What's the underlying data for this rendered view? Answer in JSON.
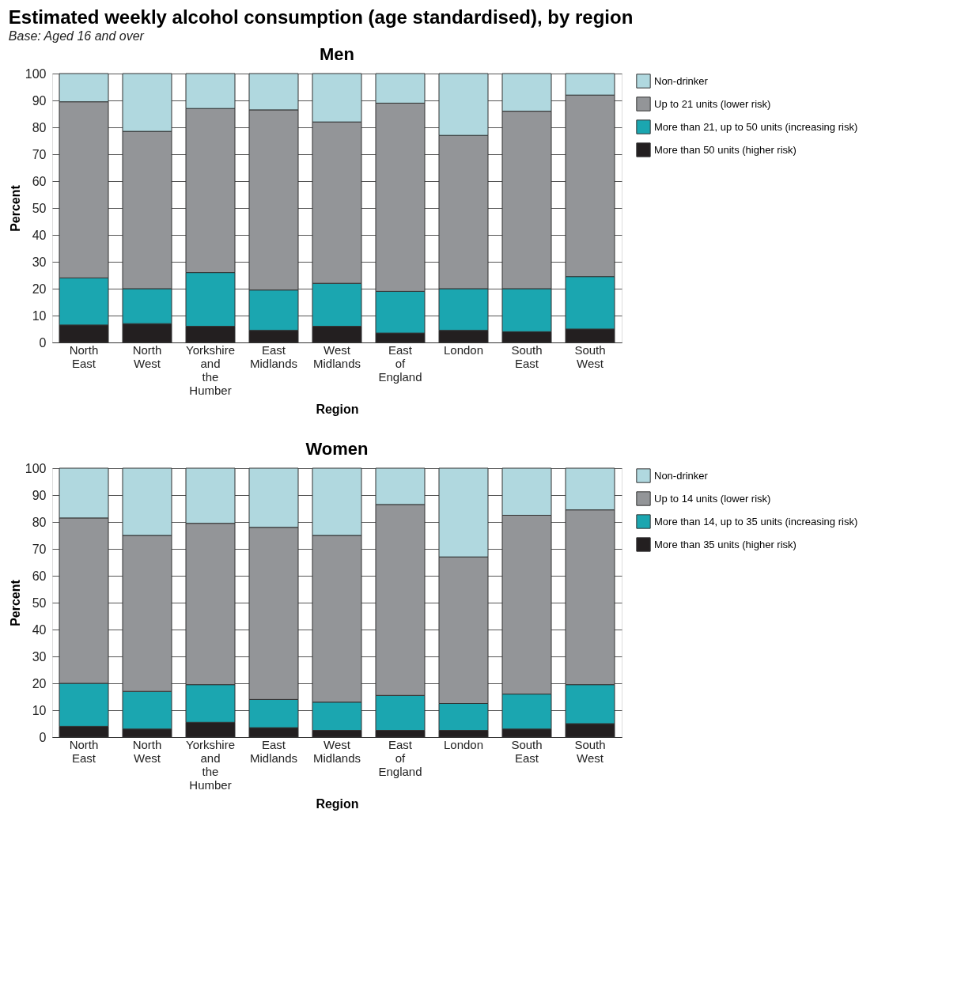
{
  "chart_data": [
    {
      "type": "bar",
      "stacked": true,
      "title": "Men",
      "annotations": [
        "Estimated weekly alcohol consumption (age standardised), by region",
        "Base: Aged 16 and over"
      ],
      "xlabel": "Region",
      "ylabel": "Percent",
      "categories": [
        "North East",
        "North West",
        "Yorkshire and the Humber",
        "East Midlands",
        "West Midlands",
        "East of England",
        "London",
        "South East",
        "South West"
      ],
      "ylim": [
        0,
        100
      ],
      "yticks": [
        0,
        10,
        20,
        30,
        40,
        50,
        60,
        70,
        80,
        90,
        100
      ],
      "grid": "y",
      "legend": "top right",
      "series": [
        {
          "name": "More than 50 units (higher risk)",
          "color": "#231f20",
          "values": [
            6.5,
            7,
            6,
            4.5,
            6,
            3.5,
            4.5,
            4,
            5
          ]
        },
        {
          "name": "More than 21, up to 50 units (increasing risk)",
          "color": "#1ba6b0",
          "values": [
            17.5,
            13,
            20,
            15,
            16,
            15.5,
            15.5,
            16,
            19.5
          ]
        },
        {
          "name": "Up to 21 units (lower risk)",
          "color": "#939598",
          "values": [
            65.5,
            58.5,
            61,
            67,
            60,
            70,
            57,
            66,
            67.5
          ]
        },
        {
          "name": "Non-drinker",
          "color": "#b0d8df",
          "values": [
            10.5,
            21.5,
            13,
            13.5,
            18,
            11,
            23,
            14,
            8
          ]
        }
      ]
    },
    {
      "type": "bar",
      "stacked": true,
      "title": "Women",
      "xlabel": "Region",
      "ylabel": "Percent",
      "categories": [
        "North East",
        "North West",
        "Yorkshire and the Humber",
        "East Midlands",
        "West Midlands",
        "East of England",
        "London",
        "South East",
        "South West"
      ],
      "ylim": [
        0,
        100
      ],
      "yticks": [
        0,
        10,
        20,
        30,
        40,
        50,
        60,
        70,
        80,
        90,
        100
      ],
      "grid": "y",
      "legend": "top right",
      "series": [
        {
          "name": "More than 35 units (higher risk)",
          "color": "#231f20",
          "values": [
            4,
            3,
            5.5,
            3.5,
            2.5,
            2.5,
            2.5,
            3,
            5
          ]
        },
        {
          "name": "More than 14, up to 35 units (increasing risk)",
          "color": "#1ba6b0",
          "values": [
            16,
            14,
            14,
            10.5,
            10.5,
            13,
            10,
            13,
            14.5
          ]
        },
        {
          "name": "Up to 14 units (lower risk)",
          "color": "#939598",
          "values": [
            61.5,
            58,
            60,
            64,
            62,
            71,
            54.5,
            66.5,
            65
          ]
        },
        {
          "name": "Non-drinker",
          "color": "#b0d8df",
          "values": [
            18.5,
            25,
            20.5,
            22,
            25,
            13.5,
            33,
            17.5,
            15.5
          ]
        }
      ]
    }
  ]
}
